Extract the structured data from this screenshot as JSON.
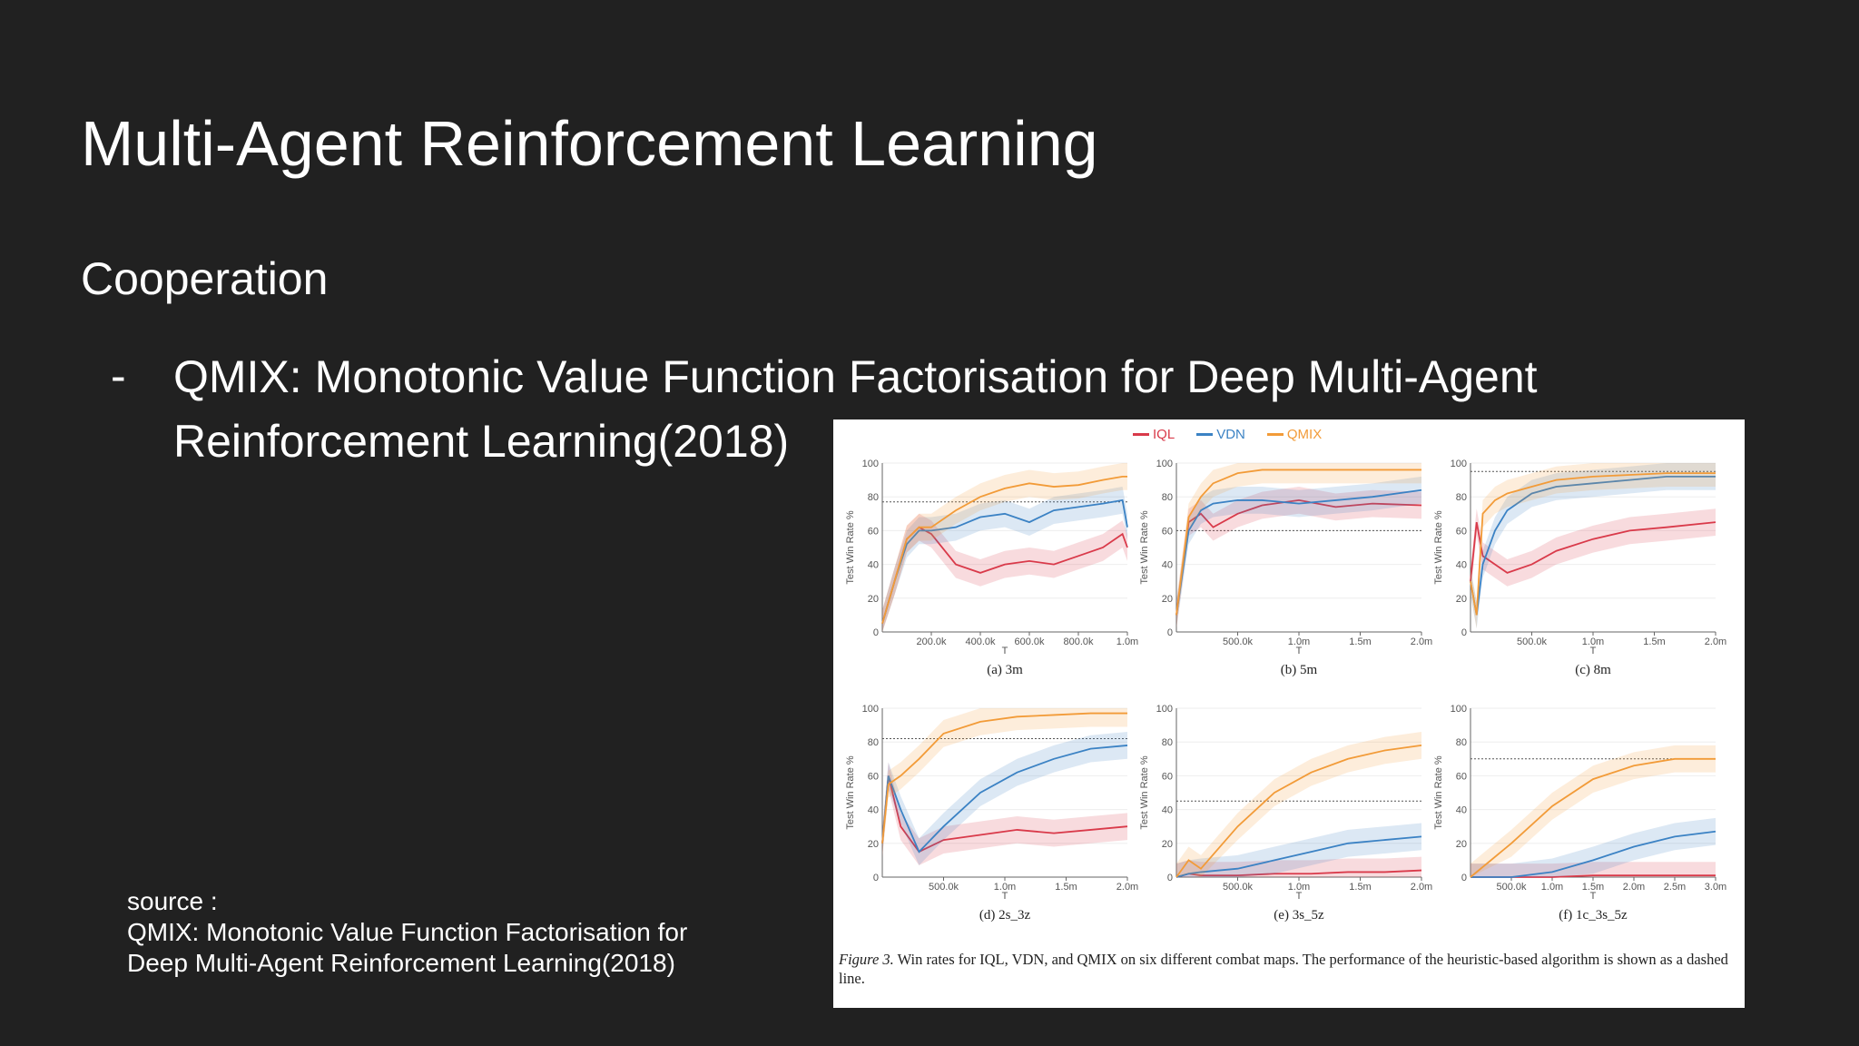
{
  "slide": {
    "title": "Multi-Agent Reinforcement Learning",
    "subtitle": "Cooperation",
    "bullet_dash": "-",
    "bullet_line1": "QMIX: Monotonic Value Function Factorisation for Deep Multi-Agent",
    "bullet_line2": "Reinforcement Learning(2018)",
    "source_label": "source :",
    "source_line1": "QMIX: Monotonic Value Function Factorisation for",
    "source_line2": "Deep Multi-Agent Reinforcement Learning(2018)"
  },
  "figure": {
    "caption_label": "Figure 3.",
    "caption_text": " Win rates for IQL, VDN, and QMIX on six different combat maps. The performance of the heuristic-based algorithm is shown as a dashed line.",
    "legend": [
      {
        "name": "IQL",
        "color": "#d93a4a"
      },
      {
        "name": "VDN",
        "color": "#3b82c4"
      },
      {
        "name": "QMIX",
        "color": "#f29b38"
      }
    ],
    "ylabel": "Test Win Rate %",
    "xlabel": "T"
  },
  "chart_data": [
    {
      "type": "line",
      "title": "(a) 3m",
      "xlabel": "T",
      "ylabel": "Test Win Rate %",
      "ylim": [
        0,
        100
      ],
      "xlim": [
        0,
        1000000
      ],
      "xticks": [
        "200.0k",
        "400.0k",
        "600.0k",
        "800.0k",
        "1.0m"
      ],
      "xtick_values": [
        200000,
        400000,
        600000,
        800000,
        1000000
      ],
      "yticks": [
        "0",
        "20",
        "40",
        "60",
        "80",
        "100"
      ],
      "heuristic": 77,
      "series": [
        {
          "name": "IQL",
          "x": [
            0,
            50000,
            100000,
            150000,
            200000,
            300000,
            400000,
            500000,
            600000,
            700000,
            800000,
            900000,
            980000,
            1000000
          ],
          "values": [
            5,
            30,
            55,
            62,
            58,
            40,
            35,
            40,
            42,
            40,
            45,
            50,
            58,
            50
          ]
        },
        {
          "name": "VDN",
          "x": [
            0,
            50000,
            100000,
            150000,
            200000,
            300000,
            400000,
            500000,
            600000,
            700000,
            800000,
            900000,
            980000,
            1000000
          ],
          "values": [
            5,
            30,
            52,
            60,
            60,
            62,
            68,
            70,
            65,
            72,
            74,
            76,
            78,
            62
          ]
        },
        {
          "name": "QMIX",
          "x": [
            0,
            50000,
            100000,
            150000,
            200000,
            300000,
            400000,
            500000,
            600000,
            700000,
            800000,
            900000,
            980000,
            1000000
          ],
          "values": [
            5,
            30,
            55,
            62,
            62,
            72,
            80,
            85,
            88,
            86,
            87,
            90,
            92,
            92
          ]
        }
      ]
    },
    {
      "type": "line",
      "title": "(b) 5m",
      "xlabel": "T",
      "ylabel": "Test Win Rate %",
      "ylim": [
        0,
        100
      ],
      "xlim": [
        0,
        2000000
      ],
      "xticks": [
        "500.0k",
        "1.0m",
        "1.5m",
        "2.0m"
      ],
      "xtick_values": [
        500000,
        1000000,
        1500000,
        2000000
      ],
      "yticks": [
        "0",
        "20",
        "40",
        "60",
        "80",
        "100"
      ],
      "heuristic": 60,
      "series": [
        {
          "name": "IQL",
          "x": [
            0,
            100000,
            200000,
            300000,
            500000,
            700000,
            1000000,
            1300000,
            1600000,
            2000000
          ],
          "values": [
            10,
            65,
            70,
            62,
            70,
            75,
            78,
            74,
            76,
            75
          ]
        },
        {
          "name": "VDN",
          "x": [
            0,
            100000,
            200000,
            300000,
            500000,
            700000,
            1000000,
            1300000,
            1600000,
            2000000
          ],
          "values": [
            10,
            60,
            72,
            76,
            78,
            78,
            76,
            78,
            80,
            84
          ]
        },
        {
          "name": "QMIX",
          "x": [
            0,
            100000,
            200000,
            300000,
            500000,
            700000,
            1000000,
            1300000,
            1600000,
            2000000
          ],
          "values": [
            10,
            68,
            80,
            88,
            94,
            96,
            96,
            96,
            96,
            96
          ]
        }
      ]
    },
    {
      "type": "line",
      "title": "(c) 8m",
      "xlabel": "T",
      "ylabel": "Test Win Rate %",
      "ylim": [
        0,
        100
      ],
      "xlim": [
        0,
        2000000
      ],
      "xticks": [
        "500.0k",
        "1.0m",
        "1.5m",
        "2.0m"
      ],
      "xtick_values": [
        500000,
        1000000,
        1500000,
        2000000
      ],
      "yticks": [
        "0",
        "20",
        "40",
        "60",
        "80",
        "100"
      ],
      "heuristic": 95,
      "series": [
        {
          "name": "IQL",
          "x": [
            0,
            50000,
            100000,
            200000,
            300000,
            500000,
            700000,
            1000000,
            1300000,
            1600000,
            2000000
          ],
          "values": [
            30,
            65,
            45,
            40,
            35,
            40,
            48,
            55,
            60,
            62,
            65
          ]
        },
        {
          "name": "VDN",
          "x": [
            0,
            50000,
            100000,
            200000,
            300000,
            500000,
            700000,
            1000000,
            1300000,
            1600000,
            2000000
          ],
          "values": [
            30,
            10,
            40,
            60,
            72,
            82,
            86,
            88,
            90,
            92,
            92
          ]
        },
        {
          "name": "QMIX",
          "x": [
            0,
            50000,
            100000,
            200000,
            300000,
            500000,
            700000,
            1000000,
            1300000,
            1600000,
            2000000
          ],
          "values": [
            30,
            10,
            70,
            78,
            82,
            86,
            90,
            92,
            93,
            94,
            94
          ]
        }
      ]
    },
    {
      "type": "line",
      "title": "(d) 2s_3z",
      "xlabel": "T",
      "ylabel": "Test Win Rate %",
      "ylim": [
        0,
        100
      ],
      "xlim": [
        0,
        2000000
      ],
      "xticks": [
        "500.0k",
        "1.0m",
        "1.5m",
        "2.0m"
      ],
      "xtick_values": [
        500000,
        1000000,
        1500000,
        2000000
      ],
      "yticks": [
        "0",
        "20",
        "40",
        "60",
        "80",
        "100"
      ],
      "heuristic": 82,
      "series": [
        {
          "name": "IQL",
          "x": [
            0,
            50000,
            150000,
            300000,
            500000,
            800000,
            1100000,
            1400000,
            1700000,
            2000000
          ],
          "values": [
            20,
            60,
            30,
            15,
            22,
            25,
            28,
            26,
            28,
            30
          ]
        },
        {
          "name": "VDN",
          "x": [
            0,
            50000,
            150000,
            300000,
            500000,
            800000,
            1100000,
            1400000,
            1700000,
            2000000
          ],
          "values": [
            20,
            60,
            40,
            15,
            30,
            50,
            62,
            70,
            76,
            78
          ]
        },
        {
          "name": "QMIX",
          "x": [
            0,
            50000,
            150000,
            300000,
            500000,
            800000,
            1100000,
            1400000,
            1700000,
            2000000
          ],
          "values": [
            20,
            55,
            60,
            70,
            85,
            92,
            95,
            96,
            97,
            97
          ]
        }
      ]
    },
    {
      "type": "line",
      "title": "(e) 3s_5z",
      "xlabel": "T",
      "ylabel": "Test Win Rate %",
      "ylim": [
        0,
        100
      ],
      "xlim": [
        0,
        2000000
      ],
      "xticks": [
        "500.0k",
        "1.0m",
        "1.5m",
        "2.0m"
      ],
      "xtick_values": [
        500000,
        1000000,
        1500000,
        2000000
      ],
      "yticks": [
        "0",
        "20",
        "40",
        "60",
        "80",
        "100"
      ],
      "heuristic": 45,
      "series": [
        {
          "name": "IQL",
          "x": [
            0,
            100000,
            200000,
            500000,
            800000,
            1100000,
            1400000,
            1700000,
            2000000
          ],
          "values": [
            0,
            2,
            1,
            1,
            2,
            2,
            3,
            3,
            4
          ]
        },
        {
          "name": "VDN",
          "x": [
            0,
            100000,
            200000,
            500000,
            800000,
            1100000,
            1400000,
            1700000,
            2000000
          ],
          "values": [
            0,
            2,
            3,
            5,
            10,
            15,
            20,
            22,
            24
          ]
        },
        {
          "name": "QMIX",
          "x": [
            0,
            100000,
            200000,
            500000,
            800000,
            1100000,
            1400000,
            1700000,
            2000000
          ],
          "values": [
            0,
            10,
            5,
            30,
            50,
            62,
            70,
            75,
            78
          ]
        }
      ]
    },
    {
      "type": "line",
      "title": "(f) 1c_3s_5z",
      "xlabel": "T",
      "ylabel": "Test Win Rate %",
      "ylim": [
        0,
        100
      ],
      "xlim": [
        0,
        3000000
      ],
      "xticks": [
        "500.0k",
        "1.0m",
        "1.5m",
        "2.0m",
        "2.5m",
        "3.0m"
      ],
      "xtick_values": [
        500000,
        1000000,
        1500000,
        2000000,
        2500000,
        3000000
      ],
      "yticks": [
        "0",
        "20",
        "40",
        "60",
        "80",
        "100"
      ],
      "heuristic": 70,
      "series": [
        {
          "name": "IQL",
          "x": [
            0,
            500000,
            1000000,
            1500000,
            2000000,
            2500000,
            3000000
          ],
          "values": [
            0,
            0,
            0,
            1,
            1,
            1,
            1
          ]
        },
        {
          "name": "VDN",
          "x": [
            0,
            500000,
            1000000,
            1500000,
            2000000,
            2500000,
            3000000
          ],
          "values": [
            0,
            0,
            3,
            10,
            18,
            24,
            27
          ]
        },
        {
          "name": "QMIX",
          "x": [
            0,
            500000,
            1000000,
            1500000,
            2000000,
            2500000,
            3000000
          ],
          "values": [
            0,
            20,
            42,
            58,
            66,
            70,
            70
          ]
        }
      ]
    }
  ]
}
